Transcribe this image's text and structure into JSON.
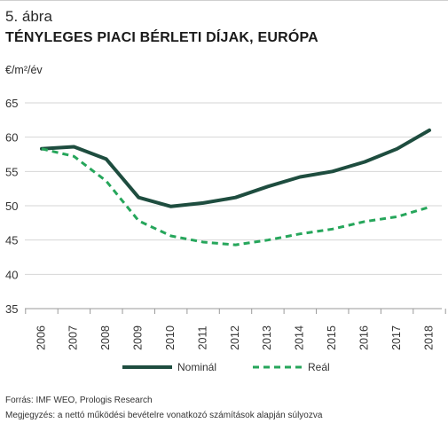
{
  "figure_label": "5. ábra",
  "title": "TÉNYLEGES PIACI BÉRLETI DÍJAK, EURÓPA",
  "unit": "€/m²/év",
  "colors": {
    "nominal": "#1e4d3f",
    "real": "#26a65b",
    "grid": "#d6d6d6",
    "axis": "#9a9a9a"
  },
  "chart_data": {
    "type": "line",
    "title": "TÉNYLEGES PIACI BÉRLETI DÍJAK, EURÓPA",
    "ylabel": "€/m²/év",
    "xlabel": "",
    "x": [
      "2006",
      "2007",
      "2008",
      "2009",
      "2010",
      "2011",
      "2012",
      "2013",
      "2014",
      "2015",
      "2016",
      "2017",
      "2018"
    ],
    "ylim": [
      35,
      65
    ],
    "yticks": [
      35,
      40,
      45,
      50,
      55,
      60,
      65
    ],
    "grid": "horizontal",
    "legend": "bottom",
    "series": [
      {
        "name": "Nominál",
        "style": "solid",
        "values": [
          58.3,
          58.6,
          56.8,
          51.2,
          49.9,
          50.4,
          51.2,
          52.8,
          54.2,
          55.0,
          56.4,
          58.3,
          61.0
        ]
      },
      {
        "name": "Reál",
        "style": "dashed",
        "values": [
          58.3,
          57.2,
          53.6,
          47.8,
          45.6,
          44.7,
          44.3,
          45.0,
          45.9,
          46.6,
          47.7,
          48.4,
          49.8
        ]
      }
    ]
  },
  "legend": {
    "nominal_label": "Nominál",
    "real_label": "Reál"
  },
  "footer": {
    "source": "Forrás: IMF WEO, Prologis Research",
    "note": "Megjegyzés: a nettó működési bevételre vonatkozó számítások alapján súlyozva"
  }
}
